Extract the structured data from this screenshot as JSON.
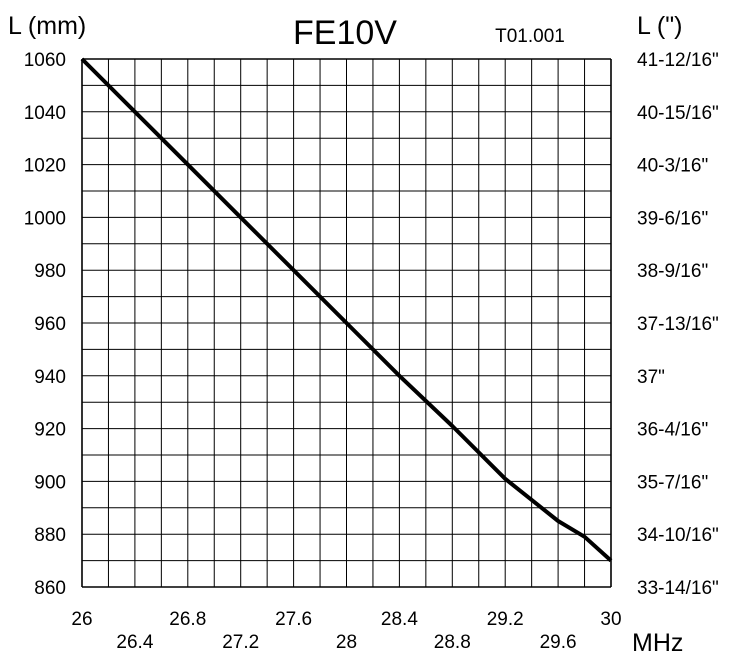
{
  "chart_data": {
    "type": "line",
    "title": "FE10V",
    "code": "T01.001",
    "ylabel_left": "L (mm)",
    "ylabel_right": "L (\")",
    "xlabel": "MHz",
    "xlim": [
      26,
      30
    ],
    "ylim": [
      860,
      1060
    ],
    "grid": true,
    "x_ticks_major": [
      "26",
      "26.8",
      "27.6",
      "28.4",
      "29.2",
      "30"
    ],
    "x_ticks_minor": [
      "26.4",
      "27.2",
      "28",
      "28.8",
      "29.6"
    ],
    "y_ticks_left": [
      "1060",
      "1040",
      "1020",
      "1000",
      "980",
      "960",
      "940",
      "920",
      "900",
      "880",
      "860"
    ],
    "y_ticks_right": [
      "41-12/16\"",
      "40-15/16\"",
      "40-3/16\"",
      "39-6/16\"",
      "38-9/16\"",
      "37-13/16\"",
      "37\"",
      "36-4/16\"",
      "35-7/16\"",
      "34-10/16\"",
      "33-14/16\""
    ],
    "series": [
      {
        "x": [
          26.0,
          26.4,
          26.8,
          27.2,
          27.6,
          28.0,
          28.4,
          28.8,
          29.2,
          29.6,
          29.8,
          30.0
        ],
        "y": [
          1060,
          1040,
          1020,
          1000,
          980,
          960,
          940,
          921,
          901,
          885,
          879,
          870
        ]
      }
    ]
  }
}
